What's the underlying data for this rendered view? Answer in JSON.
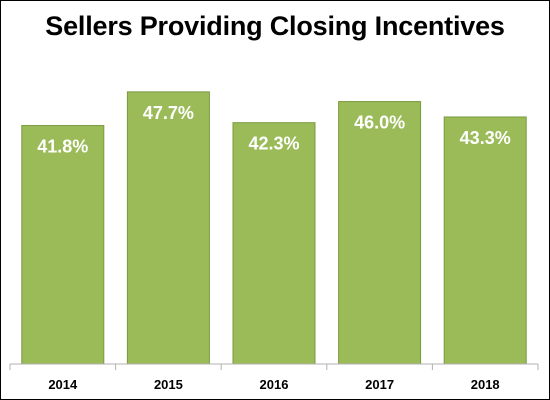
{
  "chart_data": {
    "type": "bar",
    "title": "Sellers Providing Closing Incentives",
    "xlabel": "",
    "ylabel": "",
    "categories": [
      "2014",
      "2015",
      "2016",
      "2017",
      "2018"
    ],
    "values": [
      41.8,
      47.7,
      42.3,
      46.0,
      43.3
    ],
    "data_labels": [
      "41.8%",
      "47.7%",
      "42.3%",
      "46.0%",
      "43.3%"
    ],
    "ylim": [
      0,
      50
    ],
    "grid": false,
    "legend": "none",
    "bar_color": "#9BBB59",
    "bar_edge_color": "#7A9A3F"
  }
}
